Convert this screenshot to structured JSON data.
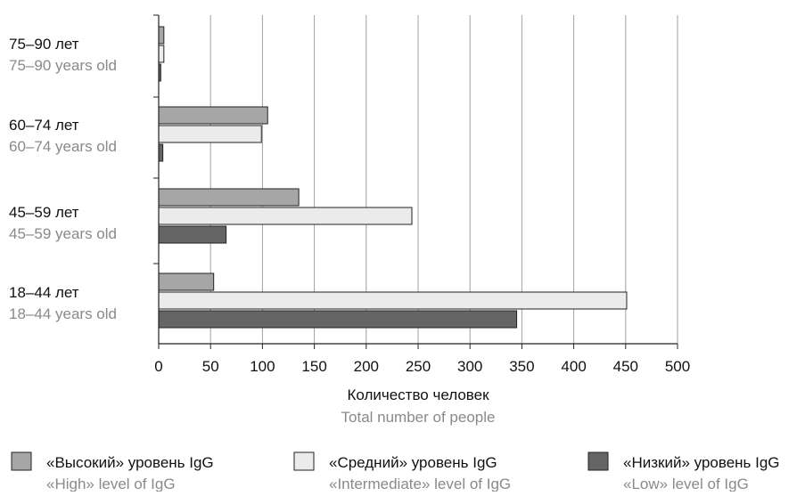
{
  "chart_data": {
    "type": "bar",
    "orientation": "horizontal",
    "categories": [
      {
        "ru": "75–90 лет",
        "en": "75–90 years old"
      },
      {
        "ru": "60–74 лет",
        "en": "60–74 years old"
      },
      {
        "ru": "45–59 лет",
        "en": "45–59 years old"
      },
      {
        "ru": "18–44 лет",
        "en": "18–44 years old"
      }
    ],
    "series": [
      {
        "name_ru": "«Высокий» уровень IgG",
        "name_en": "«High» level of IgG",
        "color": "#a6a6a6",
        "values": [
          5,
          105,
          135,
          53
        ]
      },
      {
        "name_ru": "«Средний» уровень IgG",
        "name_en": "«Intermediate» level of IgG",
        "color": "#ebebeb",
        "values": [
          5,
          99,
          244,
          451
        ]
      },
      {
        "name_ru": "«Низкий» уровень IgG",
        "name_en": "«Low» level of IgG",
        "color": "#656565",
        "values": [
          2,
          4,
          65,
          345
        ]
      }
    ],
    "xlabel_ru": "Количество человек",
    "xlabel_en": "Total number of people",
    "xlim": [
      0,
      500
    ],
    "xticks": [
      0,
      50,
      100,
      150,
      200,
      250,
      300,
      350,
      400,
      450,
      500
    ],
    "grid": "vertical",
    "legend": "bottom"
  }
}
